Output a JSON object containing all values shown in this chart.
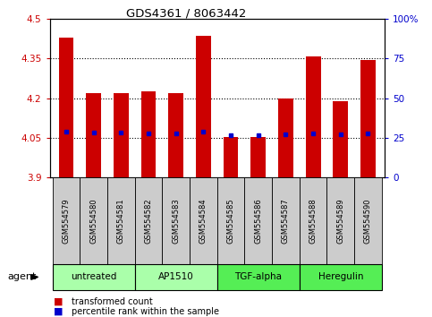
{
  "title": "GDS4361 / 8063442",
  "samples": [
    "GSM554579",
    "GSM554580",
    "GSM554581",
    "GSM554582",
    "GSM554583",
    "GSM554584",
    "GSM554585",
    "GSM554586",
    "GSM554587",
    "GSM554588",
    "GSM554589",
    "GSM554590"
  ],
  "transformed_count": [
    4.43,
    4.22,
    4.218,
    4.225,
    4.22,
    4.435,
    4.055,
    4.052,
    4.2,
    4.36,
    4.19,
    4.345
  ],
  "percentile_rank_values": [
    4.075,
    4.07,
    4.07,
    4.068,
    4.068,
    4.073,
    4.06,
    4.06,
    4.063,
    4.068,
    4.062,
    4.068
  ],
  "groups": [
    {
      "name": "untreated",
      "start": 0,
      "end": 2,
      "color": "#aaffaa"
    },
    {
      "name": "AP1510",
      "start": 3,
      "end": 5,
      "color": "#aaffaa"
    },
    {
      "name": "TGF-alpha",
      "start": 6,
      "end": 8,
      "color": "#55ee55"
    },
    {
      "name": "Heregulin",
      "start": 9,
      "end": 11,
      "color": "#55ee55"
    }
  ],
  "ylim_left": [
    3.9,
    4.5
  ],
  "ylim_right": [
    0,
    100
  ],
  "yticks_left": [
    3.9,
    4.05,
    4.2,
    4.35,
    4.5
  ],
  "yticks_right": [
    0,
    25,
    50,
    75,
    100
  ],
  "ytick_labels_left": [
    "3.9",
    "4.05",
    "4.2",
    "4.35",
    "4.5"
  ],
  "ytick_labels_right": [
    "0",
    "25",
    "50",
    "75",
    "100%"
  ],
  "bar_color": "#cc0000",
  "percentile_color": "#0000cc",
  "bar_width": 0.55,
  "left_tick_color": "#cc0000",
  "right_tick_color": "#0000cc",
  "agent_label": "agent",
  "legend_red": "transformed count",
  "legend_blue": "percentile rank within the sample",
  "sample_box_color": "#cccccc",
  "gridline_ticks": [
    4.05,
    4.2,
    4.35
  ]
}
